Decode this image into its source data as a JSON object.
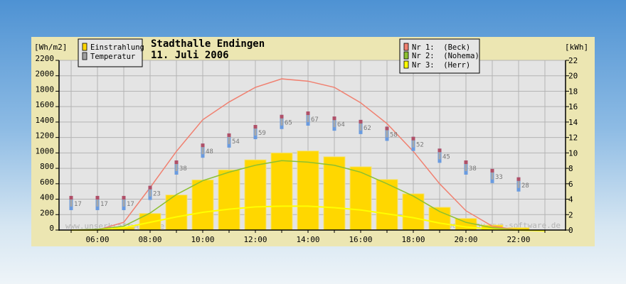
{
  "chart_data": {
    "type": "bar+line",
    "title": "Stadthalle Endingen",
    "subtitle": "11. Juli 2006",
    "ylabel_left": "[Wh/m2]",
    "ylabel_right": "[kWh]",
    "ylim_left": [
      0,
      2200
    ],
    "ylim_right": [
      0,
      22
    ],
    "yticks_left": [
      "0",
      "200",
      "400",
      "600",
      "800",
      "1000",
      "1200",
      "1400",
      "1600",
      "1800",
      "2000",
      "2200"
    ],
    "yticks_right": [
      "0",
      "2",
      "4",
      "6",
      "8",
      "10",
      "12",
      "14",
      "16",
      "18",
      "20",
      "22"
    ],
    "xticks": [
      "06:00",
      "08:00",
      "10:00",
      "12:00",
      "14:00",
      "16:00",
      "18:00",
      "20:00",
      "22:00"
    ],
    "grid": true,
    "hours": [
      5,
      6,
      7,
      8,
      9,
      10,
      11,
      12,
      13,
      14,
      15,
      16,
      17,
      18,
      19,
      20,
      21,
      22
    ],
    "legend_left": [
      {
        "label": "Einstrahlung",
        "color": "#ffd700"
      },
      {
        "label": "Temperatur",
        "color": "#a0a0a0"
      }
    ],
    "legend_right": [
      {
        "label": "Nr 1:  (Beck)",
        "color": "#f08070"
      },
      {
        "label": "Nr 2:  (Nohema)",
        "color": "#8cc030"
      },
      {
        "label": "Nr 3:  (Herr)",
        "color": "#ffff00"
      }
    ],
    "einstrahlung": {
      "name": "Einstrahlung",
      "hours": [
        7,
        8,
        9,
        10,
        11,
        12,
        13,
        14,
        15,
        16,
        17,
        18,
        19,
        20,
        21,
        22
      ],
      "values": [
        40,
        215,
        455,
        650,
        780,
        910,
        1000,
        1025,
        950,
        820,
        655,
        470,
        295,
        150,
        65,
        30
      ]
    },
    "temperatur": {
      "name": "Temperatur",
      "hours": [
        5,
        6,
        7,
        8,
        9,
        10,
        11,
        12,
        13,
        14,
        15,
        16,
        17,
        18,
        19,
        20,
        21,
        22
      ],
      "values": [
        17,
        17,
        17,
        23,
        38,
        48,
        54,
        59,
        65,
        67,
        64,
        62,
        58,
        52,
        45,
        38,
        33,
        28
      ]
    },
    "series": [
      {
        "name": "Nr 1:  (Beck)",
        "color": "#f08070",
        "hours": [
          5,
          6,
          7,
          8,
          9,
          10,
          11,
          12,
          13,
          14,
          15,
          16,
          17,
          18,
          19,
          20,
          21,
          22
        ],
        "values": [
          0,
          0,
          1.0,
          5.5,
          10.2,
          14.3,
          16.6,
          18.5,
          19.6,
          19.3,
          18.5,
          16.5,
          13.8,
          10.2,
          6.0,
          2.5,
          0.5,
          0
        ]
      },
      {
        "name": "Nr 2:  (Nohema)",
        "color": "#8cc030",
        "hours": [
          5,
          6,
          7,
          8,
          9,
          10,
          11,
          12,
          13,
          14,
          15,
          16,
          17,
          18,
          19,
          20,
          21,
          22
        ],
        "values": [
          0,
          0.1,
          0.5,
          2.2,
          4.6,
          6.4,
          7.5,
          8.4,
          9.0,
          8.8,
          8.4,
          7.5,
          6.0,
          4.4,
          2.4,
          1.0,
          0.3,
          0
        ]
      },
      {
        "name": "Nr 3:  (Herr)",
        "color": "#ffff00",
        "hours": [
          5,
          6,
          7,
          8,
          9,
          10,
          11,
          12,
          13,
          14,
          15,
          16,
          17,
          18,
          19,
          20,
          21,
          22,
          23
        ],
        "values": [
          0,
          0,
          0.3,
          1.0,
          1.7,
          2.3,
          2.7,
          3.0,
          3.1,
          3.1,
          2.9,
          2.6,
          2.1,
          1.6,
          0.9,
          0.4,
          0.1,
          0,
          -0.1
        ]
      }
    ],
    "watermarks": [
      "www.unserkraftwerk.de",
      "powered by uwa-software.de"
    ]
  }
}
